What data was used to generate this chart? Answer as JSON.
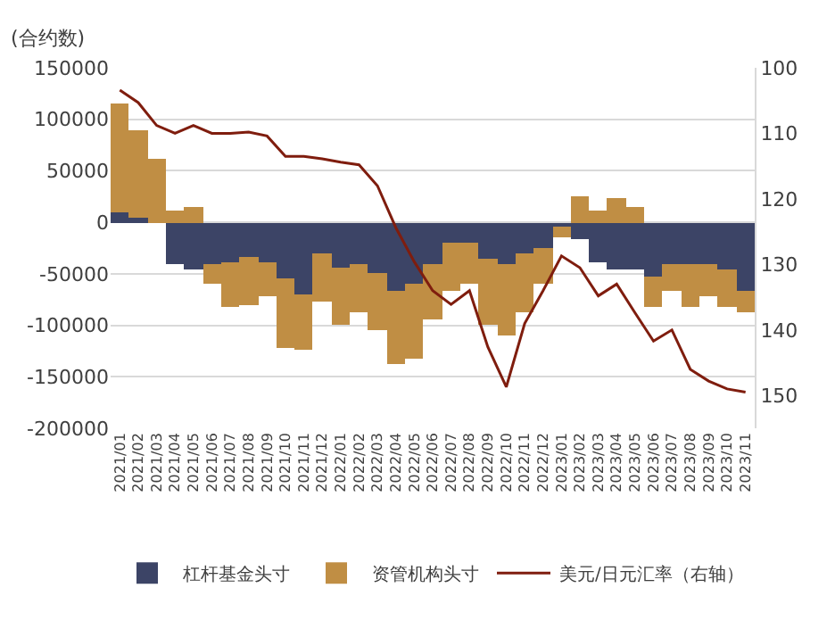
{
  "chart_data": {
    "type": "bar",
    "stacked": true,
    "ylabel": "(合约数)",
    "categories": [
      "2021/01",
      "2021/02",
      "2021/03",
      "2021/04",
      "2021/05",
      "2021/06",
      "2021/07",
      "2021/08",
      "2021/09",
      "2021/10",
      "2021/11",
      "2021/12",
      "2022/01",
      "2022/02",
      "2022/03",
      "2022/04",
      "2022/05",
      "2022/06",
      "2022/07",
      "2022/08",
      "2022/09",
      "2022/10",
      "2022/11",
      "2022/12",
      "2023/01",
      "2023/02",
      "2023/03",
      "2023/04",
      "2023/05",
      "2023/06",
      "2023/07",
      "2023/08",
      "2023/09",
      "2023/10",
      "2023/11"
    ],
    "series": [
      {
        "name": "杠杆基金头寸",
        "color": "#3c4466",
        "values": [
          10000,
          5000,
          0,
          -40000,
          -45000,
          -40000,
          -38000,
          -34000,
          -38000,
          -55000,
          -70000,
          -30000,
          -44000,
          -40000,
          -50000,
          -66000,
          -60000,
          -40000,
          -20000,
          -20000,
          -35000,
          -40000,
          -30000,
          -25000,
          -5000,
          -16000,
          -38000,
          -45000,
          -45000,
          -52000,
          -41000,
          -40000,
          -40000,
          -45000,
          -66000
        ]
      },
      {
        "name": "资管机构头寸",
        "color": "#c08e44",
        "values": [
          105000,
          85000,
          62000,
          12000,
          15000,
          -20000,
          -44000,
          -46000,
          -34000,
          -67000,
          -54000,
          -47000,
          -56000,
          -48000,
          -55000,
          -72000,
          -73000,
          -54000,
          -46000,
          -40000,
          -65000,
          -70000,
          -58000,
          -35000,
          -10000,
          25000,
          12000,
          24000,
          15000,
          -31000,
          -25000,
          -43000,
          -32000,
          -38000,
          -22000
        ]
      },
      {
        "name": "美元/日元汇率（右轴）",
        "type": "line",
        "axis": "y2",
        "color": "#7f1d0e",
        "values": [
          103.4,
          105.3,
          108.8,
          110,
          108.8,
          110,
          110,
          109.8,
          110.4,
          113.5,
          113.5,
          113.9,
          114.4,
          114.8,
          118,
          124.4,
          129.6,
          134,
          136.1,
          134,
          142.6,
          148.7,
          139,
          134,
          128.7,
          130.5,
          134.8,
          133,
          137.4,
          141.7,
          140,
          146,
          147.8,
          149,
          149.5
        ]
      }
    ],
    "ylim": [
      -200000,
      150000
    ],
    "yticks": [
      -200000,
      -150000,
      -100000,
      -50000,
      0,
      50000,
      100000,
      150000
    ],
    "y2lim": [
      155,
      100
    ],
    "y2ticks": [
      100,
      110,
      120,
      130,
      140,
      150
    ],
    "grid": "y",
    "legend": "bottom"
  }
}
